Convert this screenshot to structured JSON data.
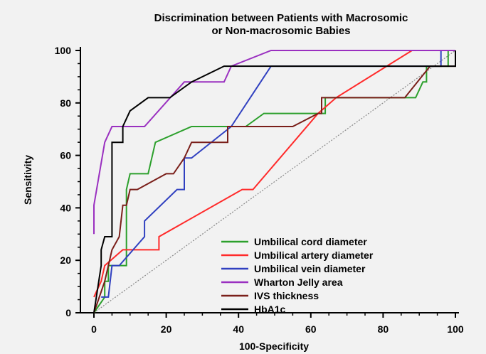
{
  "chart_data": {
    "type": "line",
    "title_lines": [
      "Discrimination between Patients with Macrosomic",
      "or Non-macrosomic Babies"
    ],
    "xlabel": "100-Specificity",
    "ylabel": "Sensitivity",
    "xlim": [
      0,
      100
    ],
    "ylim": [
      0,
      100
    ],
    "x_ticks": [
      0,
      20,
      40,
      60,
      80,
      100
    ],
    "y_ticks": [
      0,
      20,
      40,
      60,
      80,
      100
    ],
    "grid": false,
    "diagonal_reference": true,
    "legend_position": "bottom-right",
    "series": [
      {
        "name": "Umbilical cord diameter",
        "color": "#2ca02c",
        "points": [
          [
            0,
            0
          ],
          [
            3,
            6
          ],
          [
            3,
            12
          ],
          [
            4,
            12
          ],
          [
            4,
            18
          ],
          [
            9,
            18
          ],
          [
            9,
            24
          ],
          [
            9,
            47
          ],
          [
            10,
            53
          ],
          [
            15,
            53
          ],
          [
            17,
            65
          ],
          [
            27,
            71
          ],
          [
            42,
            71
          ],
          [
            47,
            76
          ],
          [
            56,
            76
          ],
          [
            64,
            76
          ],
          [
            64,
            82
          ],
          [
            89,
            82
          ],
          [
            91,
            88
          ],
          [
            92,
            88
          ],
          [
            92,
            94
          ],
          [
            98,
            94
          ],
          [
            98,
            100
          ],
          [
            100,
            100
          ]
        ]
      },
      {
        "name": "Umbilical artery diameter",
        "color": "#ff2a2a",
        "points": [
          [
            0,
            6
          ],
          [
            2,
            12
          ],
          [
            3,
            18
          ],
          [
            8,
            24
          ],
          [
            18,
            24
          ],
          [
            18,
            29
          ],
          [
            41,
            47
          ],
          [
            44,
            47
          ],
          [
            62,
            76
          ],
          [
            67,
            82
          ],
          [
            88,
            100
          ],
          [
            100,
            100
          ]
        ]
      },
      {
        "name": "Umbilical vein diameter",
        "color": "#3040c0",
        "points": [
          [
            2,
            6
          ],
          [
            4,
            6
          ],
          [
            5,
            18
          ],
          [
            7,
            18
          ],
          [
            14,
            29
          ],
          [
            14,
            35
          ],
          [
            23,
            47
          ],
          [
            25,
            47
          ],
          [
            25,
            59
          ],
          [
            27,
            59
          ],
          [
            38,
            71
          ],
          [
            49,
            94
          ],
          [
            96,
            94
          ],
          [
            96,
            100
          ],
          [
            100,
            100
          ]
        ]
      },
      {
        "name": "Wharton Jelly area",
        "color": "#9a30c0",
        "points": [
          [
            0,
            30
          ],
          [
            0,
            41
          ],
          [
            3,
            65
          ],
          [
            5,
            71
          ],
          [
            14,
            71
          ],
          [
            25,
            88
          ],
          [
            36,
            88
          ],
          [
            38,
            94
          ],
          [
            49,
            100
          ],
          [
            100,
            100
          ]
        ]
      },
      {
        "name": "IVS thickness",
        "color": "#7a1f1a",
        "points": [
          [
            0,
            0
          ],
          [
            3,
            12
          ],
          [
            5,
            24
          ],
          [
            7,
            29
          ],
          [
            8,
            41
          ],
          [
            9,
            41
          ],
          [
            10,
            47
          ],
          [
            11,
            47
          ],
          [
            12,
            47
          ],
          [
            20,
            53
          ],
          [
            22,
            53
          ],
          [
            25,
            59
          ],
          [
            27,
            65
          ],
          [
            29,
            65
          ],
          [
            35,
            65
          ],
          [
            37,
            65
          ],
          [
            37,
            71
          ],
          [
            55,
            71
          ],
          [
            62,
            76
          ],
          [
            63,
            76
          ],
          [
            63,
            82
          ],
          [
            86,
            82
          ],
          [
            93,
            94
          ],
          [
            98,
            94
          ],
          [
            100,
            94
          ],
          [
            100,
            100
          ]
        ]
      },
      {
        "name": "HbA1c",
        "color": "#000000",
        "points": [
          [
            0,
            0
          ],
          [
            2,
            18
          ],
          [
            2,
            24
          ],
          [
            3,
            29
          ],
          [
            5,
            29
          ],
          [
            5,
            65
          ],
          [
            8,
            65
          ],
          [
            8,
            71
          ],
          [
            10,
            77
          ],
          [
            15,
            82
          ],
          [
            21,
            82
          ],
          [
            27,
            88
          ],
          [
            36,
            94
          ],
          [
            100,
            94
          ],
          [
            100,
            100
          ]
        ]
      }
    ]
  }
}
